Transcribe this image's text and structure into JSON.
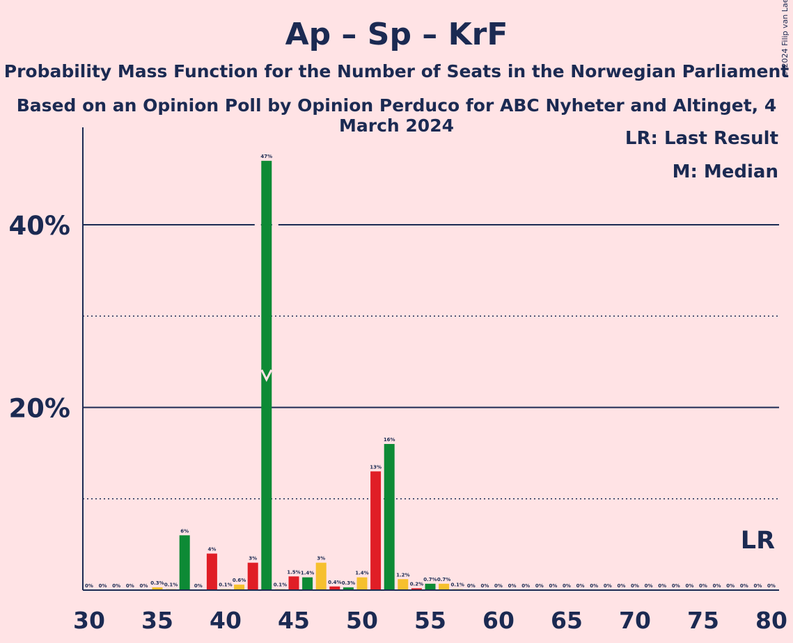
{
  "header": {
    "title": "Ap – Sp – KrF",
    "subtitle": "Probability Mass Function for the Number of Seats in the Norwegian Parliament",
    "subtitle2": "Based on an Opinion Poll by Opinion Perduco for ABC Nyheter and Altinget, 4 March 2024",
    "copyright": "© 2024 Filip van Laenen"
  },
  "legend": {
    "lr": "LR: Last Result",
    "median": "M: Median"
  },
  "colors": {
    "background": "#FFE3E5",
    "text": "#1B2A52",
    "ap": "#E01E26",
    "sp": "#0D8A35",
    "krf": "#F6C02E"
  },
  "chart_data": {
    "type": "bar",
    "x": [
      30,
      31,
      32,
      33,
      34,
      35,
      36,
      37,
      38,
      39,
      40,
      41,
      42,
      43,
      44,
      45,
      46,
      47,
      48,
      49,
      50,
      51,
      52,
      53,
      54,
      55,
      56,
      57,
      58,
      59,
      60,
      61,
      62,
      63,
      64,
      65,
      66,
      67,
      68,
      69,
      70,
      71,
      72,
      73,
      74,
      75,
      76,
      77,
      78,
      79,
      80
    ],
    "values": [
      0,
      0,
      0,
      0,
      0,
      0.3,
      0.1,
      6,
      0,
      4,
      0.1,
      0.6,
      3,
      47,
      0.1,
      1.5,
      1.4,
      3,
      0.4,
      0.3,
      1.4,
      13,
      16,
      1.2,
      0.2,
      0.7,
      0.7,
      0.1,
      0,
      0,
      0,
      0,
      0,
      0,
      0,
      0,
      0,
      0,
      0,
      0,
      0,
      0,
      0,
      0,
      0,
      0,
      0,
      0,
      0,
      0,
      0
    ],
    "value_labels": [
      "0%",
      "0%",
      "0%",
      "0%",
      "0%",
      "0.3%",
      "0.1%",
      "6%",
      "0%",
      "4%",
      "0.1%",
      "0.6%",
      "3%",
      "47%",
      "0.1%",
      "1.5%",
      "1.4%",
      "3%",
      "0.4%",
      "0.3%",
      "1.4%",
      "13%",
      "16%",
      "1.2%",
      "0.2%",
      "0.7%",
      "0.7%",
      "0.1%",
      "0%",
      "0%",
      "0%",
      "0%",
      "0%",
      "0%",
      "0%",
      "0%",
      "0%",
      "0%",
      "0%",
      "0%",
      "0%",
      "0%",
      "0%",
      "0%",
      "0%",
      "0%",
      "0%",
      "0%",
      "0%",
      "0%",
      "0%"
    ],
    "bar_colors": [
      "krf",
      "krf",
      "krf",
      "krf",
      "krf",
      "krf",
      "krf",
      "sp",
      "ap",
      "ap",
      "krf",
      "krf",
      "ap",
      "sp",
      "krf",
      "ap",
      "sp",
      "krf",
      "ap",
      "sp",
      "krf",
      "ap",
      "sp",
      "krf",
      "ap",
      "sp",
      "krf",
      "krf",
      "krf",
      "krf",
      "krf",
      "krf",
      "krf",
      "krf",
      "krf",
      "krf",
      "krf",
      "krf",
      "krf",
      "krf",
      "krf",
      "krf",
      "krf",
      "krf",
      "krf",
      "krf",
      "krf",
      "krf",
      "krf",
      "krf",
      "krf"
    ],
    "x_ticks": [
      30,
      35,
      40,
      45,
      50,
      55,
      60,
      65,
      70,
      75,
      80
    ],
    "x_tick_labels": [
      "30",
      "35",
      "40",
      "45",
      "50",
      "55",
      "60",
      "65",
      "70",
      "75",
      "80"
    ],
    "y_ticks_major": [
      20,
      40
    ],
    "y_tick_labels": [
      "20%",
      "40%"
    ],
    "y_ticks_minor": [
      10,
      30
    ],
    "ylim": [
      0,
      50.5
    ],
    "xlim": [
      29.5,
      80.5
    ],
    "median": 43,
    "last_result": 79,
    "last_result_label": "LR"
  }
}
